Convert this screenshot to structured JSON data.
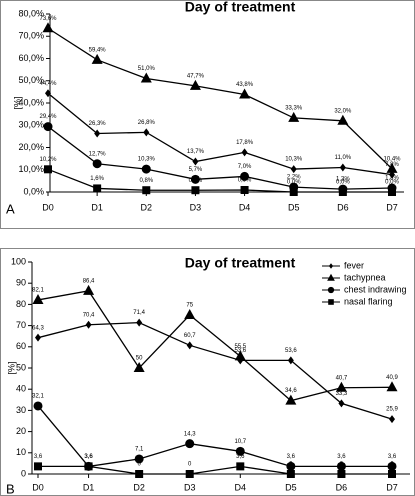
{
  "chart_data": [
    {
      "type": "line",
      "title": "Day of treatment",
      "ylabel": "[%]",
      "panel": "A",
      "categories": [
        "D0",
        "D1",
        "D2",
        "D3",
        "D4",
        "D5",
        "D6",
        "D7"
      ],
      "ylim": [
        0,
        80
      ],
      "yticks": [
        {
          "value": 0,
          "label": "0,0%"
        },
        {
          "value": 10,
          "label": "10,0%"
        },
        {
          "value": 20,
          "label": "20,0%"
        },
        {
          "value": 30,
          "label": "30,0%"
        },
        {
          "value": 40,
          "label": "40,0%"
        },
        {
          "value": 50,
          "label": "50,0%"
        },
        {
          "value": 60,
          "label": "60,0%"
        },
        {
          "value": 70,
          "label": "70,0%"
        },
        {
          "value": 80,
          "label": "80,0%"
        }
      ],
      "grid": false,
      "series": [
        {
          "marker": "triangle",
          "color": "#000000",
          "values": [
            73.6,
            59.4,
            51.0,
            47.7,
            43.8,
            33.3,
            32.0,
            10.4
          ],
          "value_labels": [
            "73,6%",
            "59,4%",
            "51,0%",
            "47,7%",
            "43,8%",
            "33,3%",
            "32,0%",
            "10,4%"
          ]
        },
        {
          "marker": "diamond",
          "color": "#000000",
          "values": [
            44.4,
            26.3,
            26.8,
            13.7,
            17.8,
            10.3,
            11.0,
            7.8
          ],
          "value_labels": [
            "44,4%",
            "26,3%",
            "26,8%",
            "13,7%",
            "17,8%",
            "10,3%",
            "11,0%",
            "7,8%"
          ]
        },
        {
          "marker": "circle",
          "color": "#000000",
          "values": [
            29.4,
            12.7,
            10.3,
            5.7,
            7.0,
            2.2,
            1.3,
            1.8
          ],
          "value_labels": [
            "29,4%",
            "12,7%",
            "10,3%",
            "5,7%",
            "7,0%",
            "2,2%",
            "1,3%",
            "1,8%"
          ]
        },
        {
          "marker": "square",
          "color": "#000000",
          "values": [
            10.2,
            1.6,
            0.8,
            0.8,
            0.9,
            0.0,
            0.0,
            0.0
          ],
          "value_labels": [
            "10,2%",
            "1,6%",
            "0,8%",
            "0,8%",
            "0,9%",
            "0,0%",
            "0,0%",
            "0,0%"
          ]
        }
      ]
    },
    {
      "type": "line",
      "title": "Day of treatment",
      "ylabel": "[%]",
      "panel": "B",
      "categories": [
        "D0",
        "D1",
        "D2",
        "D3",
        "D4",
        "D5",
        "D6",
        "D7"
      ],
      "ylim": [
        0,
        100
      ],
      "yticks": [
        0,
        10,
        20,
        30,
        40,
        50,
        60,
        70,
        80,
        90,
        100
      ],
      "grid": false,
      "legend": "top-right",
      "series": [
        {
          "name": "fever",
          "marker": "diamond",
          "color": "#000000",
          "values": [
            64.3,
            70.4,
            71.4,
            60.7,
            53.6,
            53.6,
            33.3,
            25.9
          ],
          "value_labels": [
            "64,3",
            "70,4",
            "71,4",
            "60,7",
            "53,6",
            "53,6",
            "33,3",
            "25,9"
          ]
        },
        {
          "name": "tachypnea",
          "marker": "triangle",
          "color": "#000000",
          "values": [
            82.1,
            86.4,
            50,
            75,
            55.5,
            34.6,
            40.7,
            40.9
          ],
          "value_labels": [
            "82,1",
            "86,4",
            "50",
            "75",
            "55,5",
            "34,6",
            "40,7",
            "40,9"
          ]
        },
        {
          "name": "chest indrawing",
          "marker": "circle",
          "color": "#000000",
          "values": [
            32.1,
            3.6,
            7.1,
            14.3,
            10.7,
            3.6,
            3.6,
            3.6
          ],
          "value_labels": [
            "32,1",
            "3,6",
            "7,1",
            "14,3",
            "10,7",
            "3,6",
            "3,6",
            "3,6"
          ]
        },
        {
          "name": "nasal flaring",
          "marker": "square",
          "color": "#000000",
          "values": [
            3.6,
            3.6,
            0,
            0,
            3.6,
            0,
            0,
            0
          ],
          "value_labels": [
            "3,6",
            "3,6",
            "0",
            "0",
            "3,6",
            "0",
            "0",
            "0"
          ]
        }
      ]
    }
  ]
}
